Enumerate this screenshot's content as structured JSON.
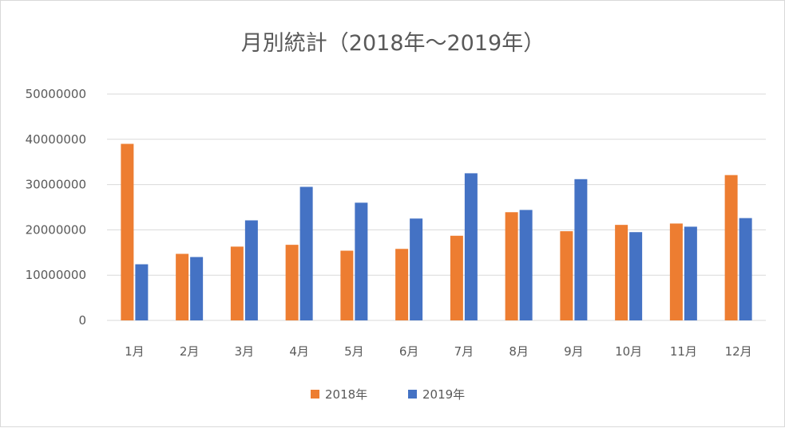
{
  "chart_data": {
    "type": "bar",
    "title": "月別統計（2018年～2019年）",
    "categories": [
      "1月",
      "2月",
      "3月",
      "4月",
      "5月",
      "6月",
      "7月",
      "8月",
      "9月",
      "10月",
      "11月",
      "12月"
    ],
    "series": [
      {
        "name": "2018年",
        "color": "#ED7D31",
        "values": [
          39000000,
          14700000,
          16300000,
          16700000,
          15400000,
          15800000,
          18700000,
          23900000,
          19700000,
          21100000,
          21400000,
          32100000
        ]
      },
      {
        "name": "2019年",
        "color": "#4472C4",
        "values": [
          12400000,
          14000000,
          22100000,
          29500000,
          26000000,
          22500000,
          32500000,
          24400000,
          31200000,
          19500000,
          20700000,
          22600000
        ]
      }
    ],
    "y_ticks": [
      "0",
      "10000000",
      "20000000",
      "30000000",
      "40000000",
      "50000000"
    ],
    "ylim": [
      0,
      50000000
    ],
    "xlabel": "",
    "ylabel": "",
    "grid": true,
    "legend_position": "bottom"
  }
}
